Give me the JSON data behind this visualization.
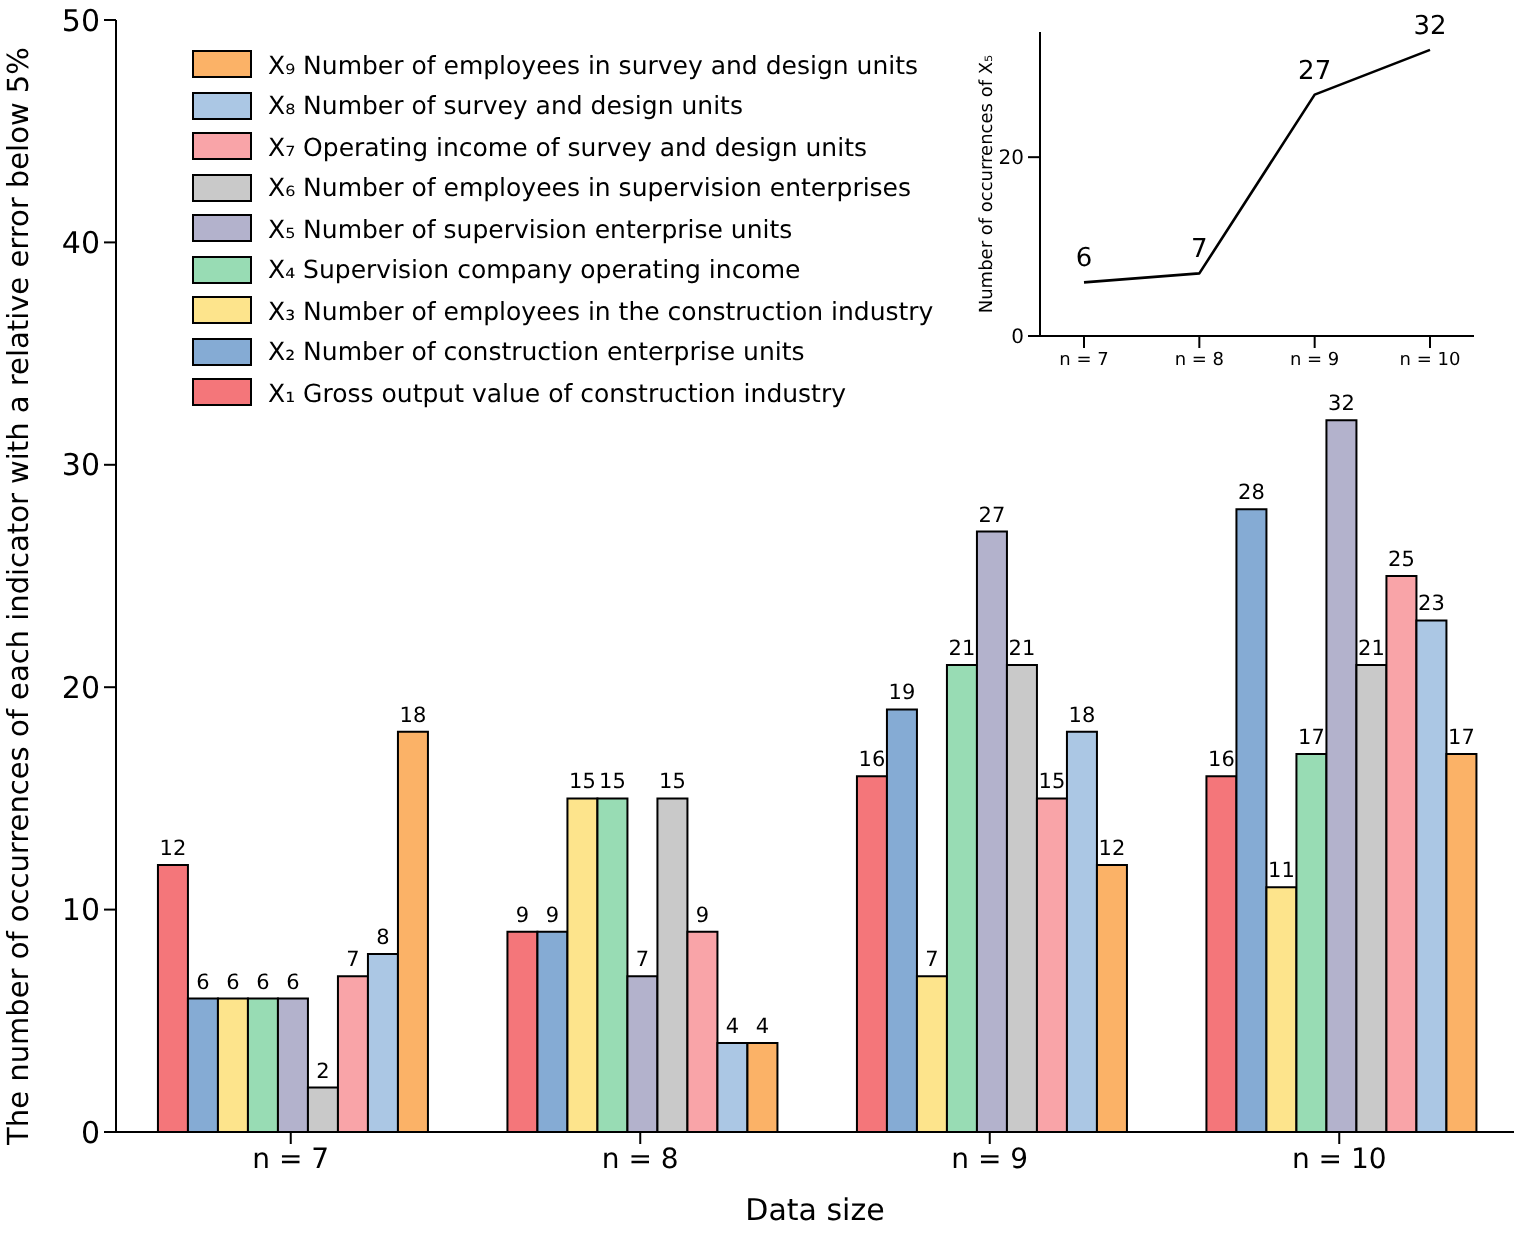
{
  "chart_data": [
    {
      "type": "bar",
      "xlabel": "Data size",
      "ylabel": "The number of occurrences of each indicator with a relative error below 5%",
      "categories": [
        "n = 7",
        "n = 8",
        "n = 9",
        "n = 10"
      ],
      "ylim": [
        0,
        50
      ],
      "yticks": [
        0,
        10,
        20,
        30,
        40,
        50
      ],
      "grid": false,
      "legend": "top left",
      "data_labels": true,
      "series": [
        {
          "name": "X₁ Gross output value of construction industry",
          "color": "#f4767a",
          "values": [
            12,
            9,
            16,
            16
          ]
        },
        {
          "name": "X₂ Number of construction enterprise units",
          "color": "#85abd4",
          "values": [
            6,
            9,
            19,
            28
          ]
        },
        {
          "name": "X₃ Number of employees in the construction industry",
          "color": "#fde48c",
          "values": [
            6,
            15,
            7,
            11
          ]
        },
        {
          "name": "X₄ Supervision company operating income",
          "color": "#98dcb4",
          "values": [
            6,
            15,
            21,
            17
          ]
        },
        {
          "name": "X₅ Number of supervision enterprise units",
          "color": "#b3b2cc",
          "values": [
            6,
            7,
            27,
            32
          ]
        },
        {
          "name": "X₆ Number of employees in supervision enterprises",
          "color": "#c9c9c9",
          "values": [
            2,
            15,
            21,
            21
          ]
        },
        {
          "name": "X₇ Operating income of survey and design units",
          "color": "#f9a4a8",
          "values": [
            7,
            9,
            15,
            25
          ]
        },
        {
          "name": "X₈ Number of survey and design units",
          "color": "#abc7e4",
          "values": [
            8,
            4,
            18,
            23
          ]
        },
        {
          "name": "X₉ Number of employees in survey and design units",
          "color": "#fbb267",
          "values": [
            18,
            4,
            12,
            17
          ]
        }
      ]
    },
    {
      "type": "line",
      "ylabel": "Number of occurrences of X₅",
      "categories": [
        "n = 7",
        "n = 8",
        "n = 9",
        "n = 10"
      ],
      "ylim": [
        0,
        34
      ],
      "yticks": [
        0,
        20
      ],
      "grid": false,
      "marker": "none",
      "data_labels": true,
      "series": [
        {
          "color": "#000000",
          "values": [
            6,
            7,
            27,
            32
          ]
        }
      ]
    }
  ]
}
